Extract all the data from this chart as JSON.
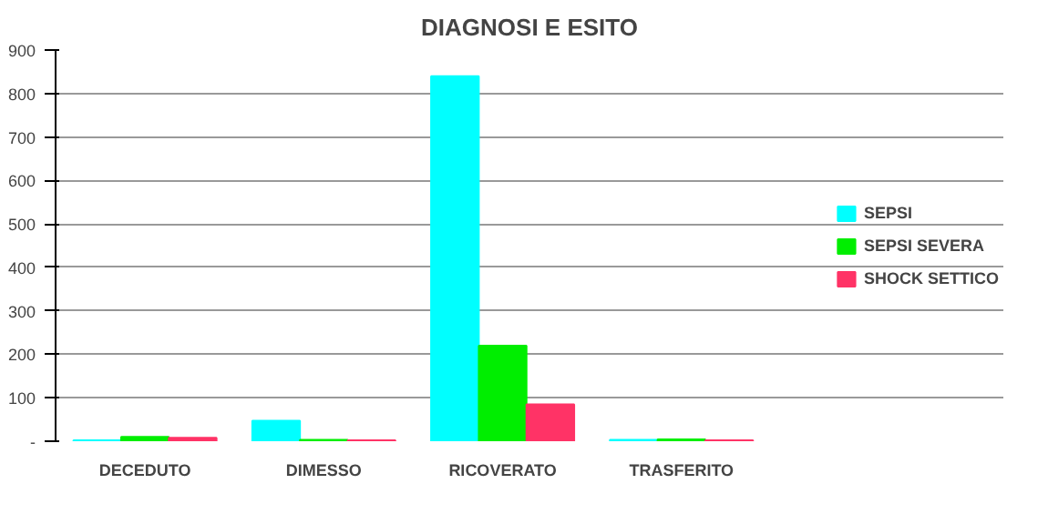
{
  "chart_data": {
    "type": "bar",
    "title": "DIAGNOSI E ESITO",
    "categories": [
      "DECEDUTO",
      "DIMESSO",
      "RICOVERATO",
      "TRASFERITO"
    ],
    "series": [
      {
        "name": "SEPSI",
        "color": "#00ffff",
        "values": [
          2,
          47,
          840,
          3
        ]
      },
      {
        "name": "SEPSI SEVERA",
        "color": "#00ee00",
        "values": [
          10,
          3,
          220,
          4
        ]
      },
      {
        "name": "SHOCK SETTICO",
        "color": "#ff3366",
        "values": [
          8,
          2,
          85,
          2
        ]
      }
    ],
    "ylim": [
      0,
      900
    ],
    "yticks": [
      {
        "value": 0,
        "label": "-"
      },
      100,
      200,
      300,
      400,
      500,
      600,
      700,
      800,
      900
    ],
    "grid": "y",
    "legend": "right"
  }
}
